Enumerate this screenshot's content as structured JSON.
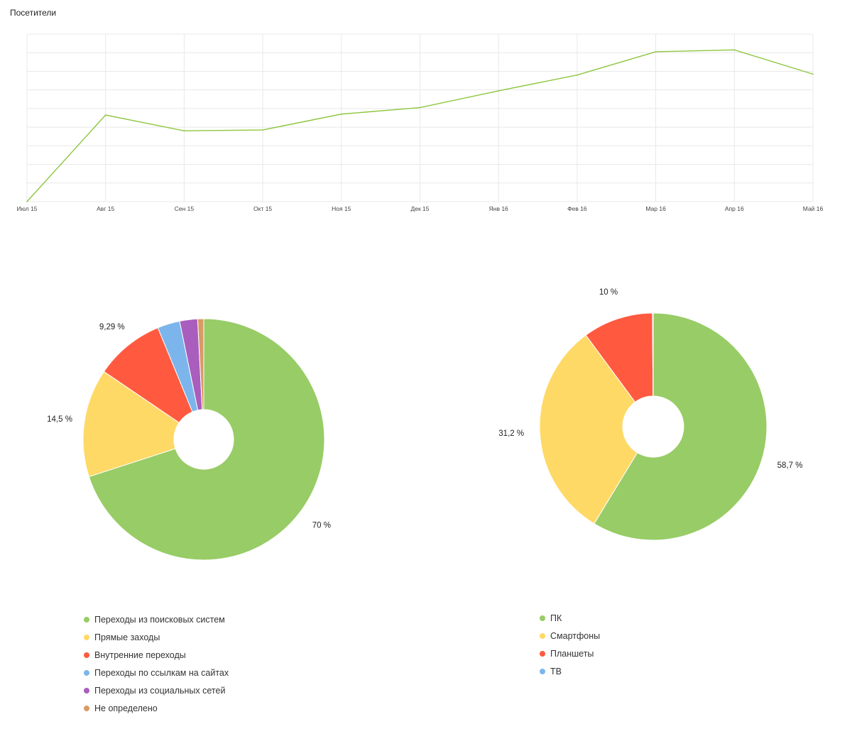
{
  "colors": {
    "green": "#98cc66",
    "yellow": "#ffd966",
    "red": "#ff5a40",
    "blue": "#7cb5ec",
    "purple": "#a95ebd",
    "orange": "#d99a66",
    "grid": "#e8e8e8",
    "line": "#8dc63f"
  },
  "chart_data": [
    {
      "type": "line",
      "title": "Посетители",
      "categories": [
        "Июл 15",
        "Авг 15",
        "Сен 15",
        "Окт 15",
        "Ноя 15",
        "Дек 15",
        "Янв 16",
        "Фев 16",
        "Мар 16",
        "Апр 16",
        "Май 16"
      ],
      "series": [
        {
          "values": [
            0.0,
            4.65,
            3.8,
            3.85,
            4.7,
            5.05,
            5.95,
            6.8,
            8.05,
            8.15,
            6.85
          ]
        }
      ],
      "ylim": [
        0,
        9
      ],
      "grid": true,
      "y_tick_labels_shown": false
    },
    {
      "type": "pie",
      "donut": true,
      "slices": [
        {
          "name": "Переходы из поисковых систем",
          "value": 70.0,
          "label": "70 %",
          "color": "#98cc66"
        },
        {
          "name": "Прямые заходы",
          "value": 14.5,
          "label": "14,5 %",
          "color": "#ffd966"
        },
        {
          "name": "Внутренние переходы",
          "value": 9.29,
          "label": "9,29 %",
          "color": "#ff5a40"
        },
        {
          "name": "Переходы по ссылкам на сайтах",
          "value": 3.0,
          "label": "",
          "color": "#7cb5ec"
        },
        {
          "name": "Переходы из социальных сетей",
          "value": 2.4,
          "label": "",
          "color": "#a95ebd"
        },
        {
          "name": "Не определено",
          "value": 0.81,
          "label": "",
          "color": "#d99a66"
        }
      ],
      "legend": "bottom"
    },
    {
      "type": "pie",
      "donut": true,
      "slices": [
        {
          "name": "ПК",
          "value": 58.7,
          "label": "58,7 %",
          "color": "#98cc66"
        },
        {
          "name": "Смартфоны",
          "value": 31.2,
          "label": "31,2 %",
          "color": "#ffd966"
        },
        {
          "name": "Планшеты",
          "value": 10.0,
          "label": "10 %",
          "color": "#ff5a40"
        },
        {
          "name": "ТВ",
          "value": 0.1,
          "label": "",
          "color": "#7cb5ec"
        }
      ],
      "legend": "bottom"
    }
  ]
}
